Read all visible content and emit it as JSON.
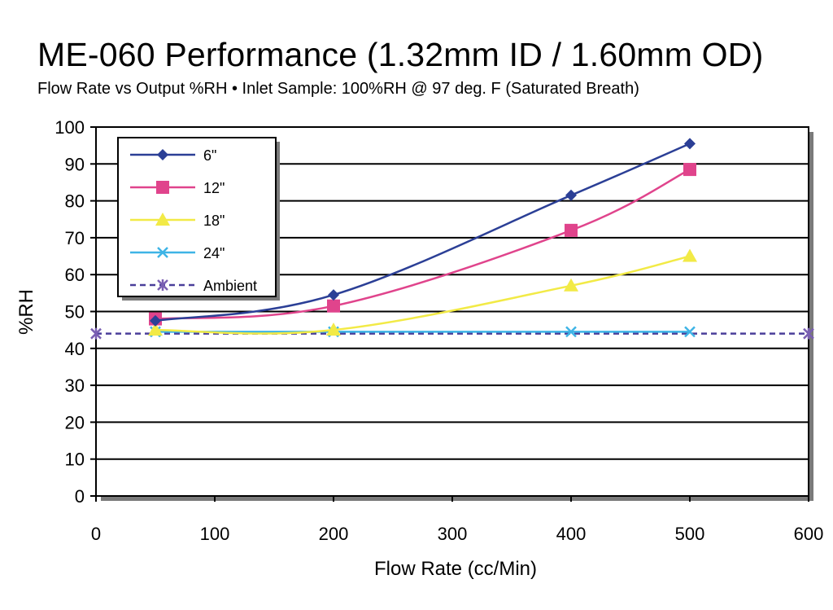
{
  "chart_data": {
    "type": "line",
    "title": "ME-060 Performance (1.32mm ID / 1.60mm OD)",
    "subtitle": "Flow Rate vs Output %RH  •  Inlet Sample: 100%RH @ 97 deg. F (Saturated Breath)",
    "xlabel": "Flow Rate (cc/Min)",
    "ylabel": "%RH",
    "xlim": [
      0,
      600
    ],
    "ylim": [
      0,
      100
    ],
    "xticks": [
      "0",
      "100",
      "200",
      "300",
      "400",
      "500",
      "600"
    ],
    "yticks": [
      "0",
      "10",
      "20",
      "30",
      "40",
      "50",
      "60",
      "70",
      "80",
      "90",
      "100"
    ],
    "grid": "horizontal",
    "legend_position": "top-left",
    "series": [
      {
        "name": "6\"",
        "marker": "diamond",
        "line_style": "solid",
        "color": "#2b3f96",
        "marker_color": "#2b3f96",
        "x": [
          50,
          200,
          400,
          500
        ],
        "y": [
          47.5,
          54.5,
          81.5,
          95.5
        ]
      },
      {
        "name": "12\"",
        "marker": "square",
        "line_style": "solid",
        "color": "#e0448c",
        "marker_color": "#e0448c",
        "x": [
          50,
          200,
          400,
          500
        ],
        "y": [
          48,
          51.5,
          72,
          88.5
        ]
      },
      {
        "name": "18\"",
        "marker": "triangle",
        "line_style": "solid",
        "color": "#f2ea46",
        "marker_color": "#f2ea46",
        "x": [
          50,
          200,
          400,
          500
        ],
        "y": [
          45,
          45,
          57,
          65
        ]
      },
      {
        "name": "24\"",
        "marker": "x",
        "line_style": "solid",
        "color": "#3eb4e6",
        "marker_color": "#3eb4e6",
        "x": [
          50,
          200,
          400,
          500
        ],
        "y": [
          44.5,
          44.5,
          44.5,
          44.5
        ]
      },
      {
        "name": "Ambient",
        "marker": "star",
        "line_style": "dashed",
        "color": "#4a3f9a",
        "marker_color": "#7a5fb2",
        "x": [
          0,
          600
        ],
        "y": [
          44,
          44
        ]
      }
    ]
  }
}
